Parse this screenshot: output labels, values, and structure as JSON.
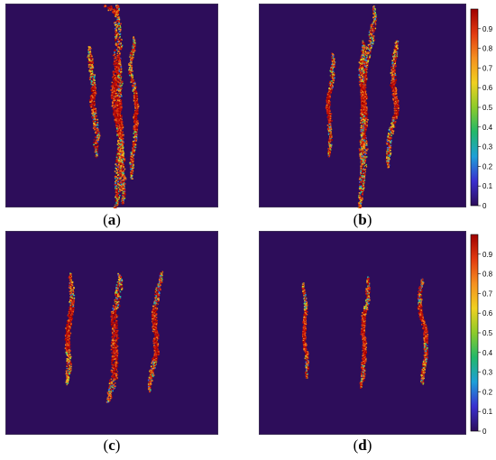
{
  "panels": [
    {
      "id": "a",
      "label": "a"
    },
    {
      "id": "b",
      "label": "b"
    },
    {
      "id": "c",
      "label": "c"
    },
    {
      "id": "d",
      "label": "d"
    }
  ],
  "colorbar": {
    "ticks": [
      "0",
      "0.1",
      "0.2",
      "0.3",
      "0.4",
      "0.5",
      "0.6",
      "0.7",
      "0.8",
      "0.9"
    ],
    "range": [
      0,
      1
    ],
    "colors": [
      "#2d0d5a",
      "#3a2fd0",
      "#1e9fd8",
      "#22b86a",
      "#8ccb2a",
      "#f0d020",
      "#f49020",
      "#e23a10",
      "#a00000"
    ]
  }
}
